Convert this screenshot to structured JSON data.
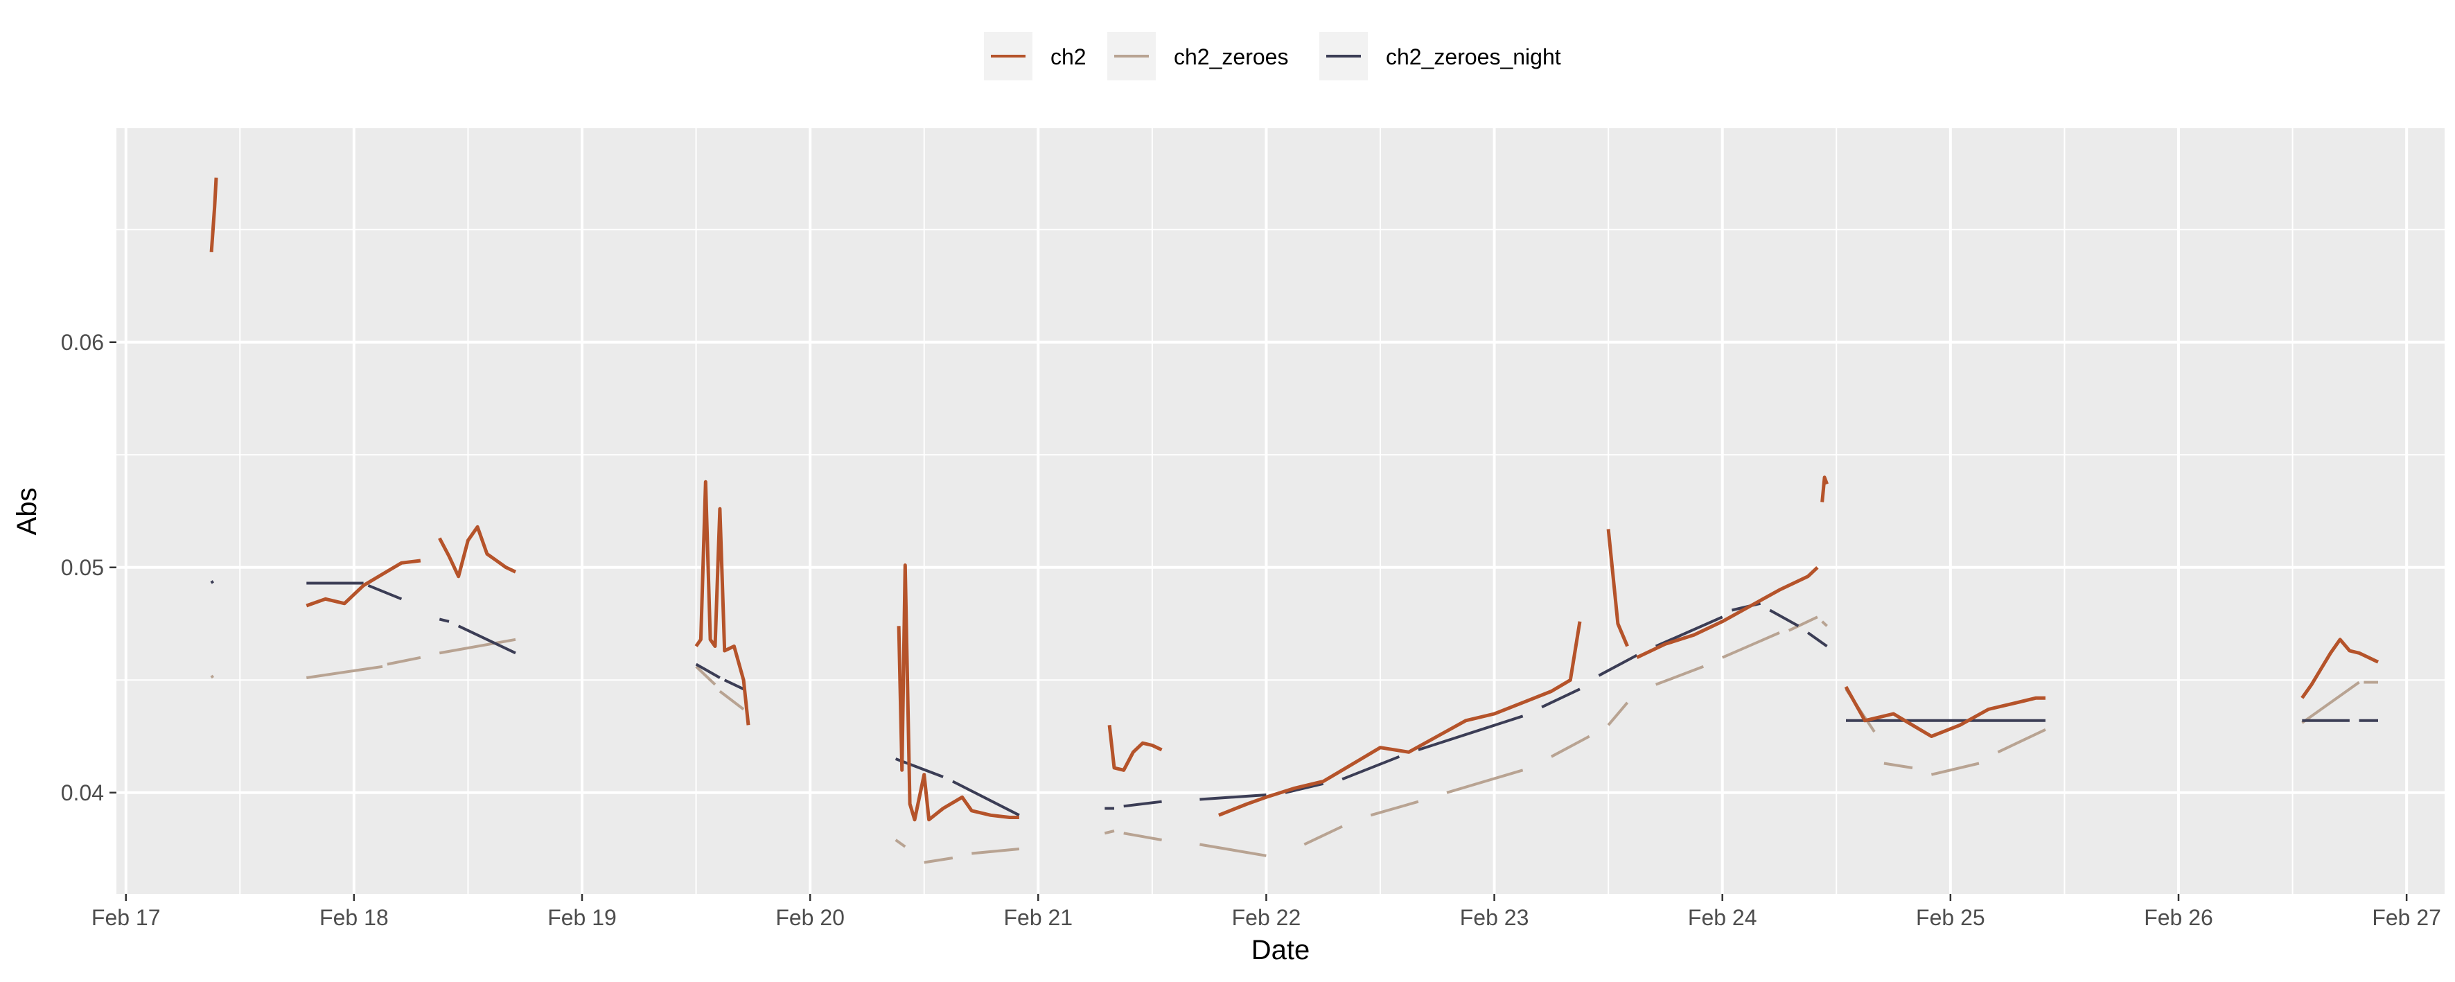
{
  "chart_data": {
    "type": "line",
    "title": "",
    "xlabel": "Date",
    "ylabel": "Abs",
    "x_ticks": [
      "Feb 17",
      "Feb 18",
      "Feb 19",
      "Feb 20",
      "Feb 21",
      "Feb 22",
      "Feb 23",
      "Feb 24",
      "Feb 25",
      "Feb 26",
      "Feb 27"
    ],
    "y_ticks": [
      "0.04",
      "0.05",
      "0.06"
    ],
    "xlim": [
      "Feb 16 23:00",
      "Feb 27 04:00"
    ],
    "ylim": [
      0.0355,
      0.0695
    ],
    "grid": true,
    "legend_position": "top",
    "series": [
      {
        "name": "ch2",
        "color": "#b5532a",
        "segments": [
          [
            [
              "Feb 17 09:00",
              0.064
            ],
            [
              "Feb 17 09:10",
              0.065
            ],
            [
              "Feb 17 09:20",
              0.066
            ],
            [
              "Feb 17 09:30",
              0.0673
            ]
          ],
          [
            [
              "Feb 17 19:00",
              0.0483
            ],
            [
              "Feb 17 21:00",
              0.0486
            ],
            [
              "Feb 17 23:00",
              0.0484
            ],
            [
              "Feb 18 01:00",
              0.0492
            ],
            [
              "Feb 18 03:00",
              0.0497
            ],
            [
              "Feb 18 05:00",
              0.0502
            ],
            [
              "Feb 18 07:00",
              0.0503
            ]
          ],
          [
            [
              "Feb 18 09:00",
              0.0513
            ],
            [
              "Feb 18 10:00",
              0.0505
            ],
            [
              "Feb 18 11:00",
              0.0496
            ],
            [
              "Feb 18 12:00",
              0.0512
            ],
            [
              "Feb 18 13:00",
              0.0518
            ],
            [
              "Feb 18 14:00",
              0.0506
            ],
            [
              "Feb 18 15:00",
              0.0503
            ],
            [
              "Feb 18 16:00",
              0.05
            ],
            [
              "Feb 18 17:00",
              0.0498
            ]
          ],
          [
            [
              "Feb 19 12:00",
              0.0465
            ],
            [
              "Feb 19 12:30",
              0.0468
            ],
            [
              "Feb 19 13:00",
              0.0538
            ],
            [
              "Feb 19 13:30",
              0.0468
            ],
            [
              "Feb 19 14:00",
              0.0465
            ],
            [
              "Feb 19 14:30",
              0.0526
            ],
            [
              "Feb 19 15:00",
              0.0463
            ],
            [
              "Feb 19 16:00",
              0.0465
            ],
            [
              "Feb 19 17:00",
              0.045
            ],
            [
              "Feb 19 17:30",
              0.043
            ]
          ],
          [
            [
              "Feb 20 09:20",
              0.0474
            ],
            [
              "Feb 20 09:40",
              0.041
            ],
            [
              "Feb 20 10:00",
              0.0501
            ],
            [
              "Feb 20 10:30",
              0.0395
            ],
            [
              "Feb 20 11:00",
              0.0388
            ],
            [
              "Feb 20 12:00",
              0.0408
            ],
            [
              "Feb 20 12:30",
              0.0388
            ],
            [
              "Feb 20 14:00",
              0.0393
            ],
            [
              "Feb 20 16:00",
              0.0398
            ],
            [
              "Feb 20 17:00",
              0.0392
            ],
            [
              "Feb 20 19:00",
              0.039
            ],
            [
              "Feb 20 21:00",
              0.0389
            ],
            [
              "Feb 20 22:00",
              0.0389
            ]
          ],
          [
            [
              "Feb 21 07:30",
              0.043
            ],
            [
              "Feb 21 08:00",
              0.0411
            ],
            [
              "Feb 21 09:00",
              0.041
            ],
            [
              "Feb 21 10:00",
              0.0418
            ],
            [
              "Feb 21 11:00",
              0.0422
            ],
            [
              "Feb 21 12:00",
              0.0421
            ],
            [
              "Feb 21 13:00",
              0.0419
            ]
          ],
          [
            [
              "Feb 21 19:00",
              0.039
            ],
            [
              "Feb 21 22:00",
              0.0395
            ],
            [
              "Feb 22 00:00",
              0.0398
            ],
            [
              "Feb 22 03:00",
              0.0402
            ],
            [
              "Feb 22 06:00",
              0.0405
            ],
            [
              "Feb 22 08:00",
              0.041
            ],
            [
              "Feb 22 10:00",
              0.0415
            ],
            [
              "Feb 22 12:00",
              0.042
            ],
            [
              "Feb 22 15:00",
              0.0418
            ],
            [
              "Feb 22 18:00",
              0.0425
            ],
            [
              "Feb 22 21:00",
              0.0432
            ],
            [
              "Feb 23 00:00",
              0.0435
            ],
            [
              "Feb 23 03:00",
              0.044
            ],
            [
              "Feb 23 06:00",
              0.0445
            ],
            [
              "Feb 23 08:00",
              0.045
            ],
            [
              "Feb 23 09:00",
              0.0476
            ]
          ],
          [
            [
              "Feb 23 12:00",
              0.0517
            ],
            [
              "Feb 23 13:00",
              0.0475
            ],
            [
              "Feb 23 14:00",
              0.0465
            ]
          ],
          [
            [
              "Feb 23 15:00",
              0.046
            ],
            [
              "Feb 23 18:00",
              0.0466
            ],
            [
              "Feb 23 21:00",
              0.047
            ],
            [
              "Feb 24 00:00",
              0.0476
            ],
            [
              "Feb 24 03:00",
              0.0483
            ],
            [
              "Feb 24 06:00",
              0.049
            ],
            [
              "Feb 24 09:00",
              0.0496
            ],
            [
              "Feb 24 10:00",
              0.05
            ]
          ],
          [
            [
              "Feb 24 10:30",
              0.0529
            ],
            [
              "Feb 24 10:45",
              0.054
            ],
            [
              "Feb 24 11:00",
              0.0537
            ]
          ],
          [
            [
              "Feb 24 13:00",
              0.0447
            ],
            [
              "Feb 24 15:00",
              0.0432
            ],
            [
              "Feb 24 18:00",
              0.0435
            ],
            [
              "Feb 24 20:00",
              0.043
            ],
            [
              "Feb 24 22:00",
              0.0425
            ],
            [
              "Feb 25 01:00",
              0.043
            ],
            [
              "Feb 25 04:00",
              0.0437
            ],
            [
              "Feb 25 07:00",
              0.044
            ],
            [
              "Feb 25 09:00",
              0.0442
            ],
            [
              "Feb 25 10:00",
              0.0442
            ]
          ],
          [
            [
              "Feb 26 13:00",
              0.0442
            ],
            [
              "Feb 26 14:00",
              0.0448
            ],
            [
              "Feb 26 15:00",
              0.0455
            ],
            [
              "Feb 26 16:00",
              0.0462
            ],
            [
              "Feb 26 17:00",
              0.0468
            ],
            [
              "Feb 26 18:00",
              0.0463
            ],
            [
              "Feb 26 19:00",
              0.0462
            ],
            [
              "Feb 26 20:00",
              0.046
            ],
            [
              "Feb 26 21:00",
              0.0458
            ]
          ]
        ]
      },
      {
        "name": "ch2_zeroes",
        "color": "#b8a392",
        "segments": [
          [
            [
              "Feb 17 09:00",
              0.0452
            ],
            [
              "Feb 17 09:10",
              0.0451
            ]
          ],
          [
            [
              "Feb 17 19:00",
              0.0451
            ],
            [
              "Feb 18 03:00",
              0.0456
            ]
          ],
          [
            [
              "Feb 18 03:30",
              0.0457
            ],
            [
              "Feb 18 07:00",
              0.046
            ]
          ],
          [
            [
              "Feb 18 09:00",
              0.0462
            ],
            [
              "Feb 18 17:00",
              0.0468
            ]
          ],
          [
            [
              "Feb 19 12:00",
              0.0456
            ],
            [
              "Feb 19 14:00",
              0.0448
            ]
          ],
          [
            [
              "Feb 19 14:30",
              0.0445
            ],
            [
              "Feb 19 17:00",
              0.0437
            ]
          ],
          [
            [
              "Feb 20 09:00",
              0.0379
            ],
            [
              "Feb 20 10:00",
              0.0376
            ]
          ],
          [
            [
              "Feb 20 12:00",
              0.0369
            ],
            [
              "Feb 20 15:00",
              0.0371
            ]
          ],
          [
            [
              "Feb 20 17:00",
              0.0373
            ],
            [
              "Feb 20 22:00",
              0.0375
            ]
          ],
          [
            [
              "Feb 21 07:00",
              0.0382
            ],
            [
              "Feb 21 08:00",
              0.0383
            ]
          ],
          [
            [
              "Feb 21 09:00",
              0.0382
            ],
            [
              "Feb 21 13:00",
              0.0379
            ]
          ],
          [
            [
              "Feb 21 17:00",
              0.0377
            ],
            [
              "Feb 22 00:00",
              0.0372
            ]
          ],
          [
            [
              "Feb 22 04:00",
              0.0377
            ],
            [
              "Feb 22 08:00",
              0.0385
            ]
          ],
          [
            [
              "Feb 22 11:00",
              0.039
            ],
            [
              "Feb 22 16:00",
              0.0396
            ]
          ],
          [
            [
              "Feb 22 19:00",
              0.04
            ],
            [
              "Feb 23 03:00",
              0.041
            ]
          ],
          [
            [
              "Feb 23 06:00",
              0.0416
            ],
            [
              "Feb 23 10:00",
              0.0425
            ]
          ],
          [
            [
              "Feb 23 12:00",
              0.043
            ],
            [
              "Feb 23 14:00",
              0.044
            ]
          ],
          [
            [
              "Feb 23 17:00",
              0.0448
            ],
            [
              "Feb 23 22:00",
              0.0456
            ]
          ],
          [
            [
              "Feb 24 00:00",
              0.046
            ],
            [
              "Feb 24 06:00",
              0.0471
            ]
          ],
          [
            [
              "Feb 24 07:00",
              0.0472
            ],
            [
              "Feb 24 10:00",
              0.0478
            ]
          ],
          [
            [
              "Feb 24 10:30",
              0.0476
            ],
            [
              "Feb 24 11:00",
              0.0474
            ]
          ],
          [
            [
              "Feb 24 13:00",
              0.0446
            ],
            [
              "Feb 24 16:00",
              0.0427
            ]
          ],
          [
            [
              "Feb 24 17:00",
              0.0413
            ],
            [
              "Feb 24 20:00",
              0.0411
            ]
          ],
          [
            [
              "Feb 24 22:00",
              0.0408
            ],
            [
              "Feb 25 03:00",
              0.0413
            ]
          ],
          [
            [
              "Feb 25 05:00",
              0.0418
            ],
            [
              "Feb 25 10:00",
              0.0428
            ]
          ],
          [
            [
              "Feb 26 13:00",
              0.0431
            ],
            [
              "Feb 26 19:00",
              0.0449
            ]
          ],
          [
            [
              "Feb 26 19:30",
              0.0449
            ],
            [
              "Feb 26 21:00",
              0.0449
            ]
          ]
        ]
      },
      {
        "name": "ch2_zeroes_night",
        "color": "#3b3d55",
        "segments": [
          [
            [
              "Feb 17 09:00",
              0.0494
            ],
            [
              "Feb 17 09:10",
              0.0493
            ]
          ],
          [
            [
              "Feb 17 19:00",
              0.0493
            ],
            [
              "Feb 18 01:00",
              0.0493
            ]
          ],
          [
            [
              "Feb 18 01:30",
              0.0492
            ],
            [
              "Feb 18 05:00",
              0.0486
            ]
          ],
          [
            [
              "Feb 18 09:00",
              0.0477
            ],
            [
              "Feb 18 10:00",
              0.0476
            ]
          ],
          [
            [
              "Feb 18 11:00",
              0.0474
            ],
            [
              "Feb 18 17:00",
              0.0462
            ]
          ],
          [
            [
              "Feb 19 12:00",
              0.0457
            ],
            [
              "Feb 19 14:30",
              0.0451
            ]
          ],
          [
            [
              "Feb 19 15:00",
              0.045
            ],
            [
              "Feb 19 17:00",
              0.0446
            ]
          ],
          [
            [
              "Feb 20 09:00",
              0.0415
            ],
            [
              "Feb 20 14:00",
              0.0407
            ]
          ],
          [
            [
              "Feb 20 15:00",
              0.0405
            ],
            [
              "Feb 20 22:00",
              0.039
            ]
          ],
          [
            [
              "Feb 21 07:00",
              0.0393
            ],
            [
              "Feb 21 08:00",
              0.0393
            ]
          ],
          [
            [
              "Feb 21 09:00",
              0.0394
            ],
            [
              "Feb 21 13:00",
              0.0396
            ]
          ],
          [
            [
              "Feb 21 17:00",
              0.0397
            ],
            [
              "Feb 22 00:00",
              0.0399
            ]
          ],
          [
            [
              "Feb 22 02:00",
              0.04
            ],
            [
              "Feb 22 06:00",
              0.0404
            ]
          ],
          [
            [
              "Feb 22 08:00",
              0.0406
            ],
            [
              "Feb 22 14:00",
              0.0416
            ]
          ],
          [
            [
              "Feb 22 16:00",
              0.0419
            ],
            [
              "Feb 23 03:00",
              0.0434
            ]
          ],
          [
            [
              "Feb 23 05:00",
              0.0438
            ],
            [
              "Feb 23 09:00",
              0.0446
            ]
          ],
          [
            [
              "Feb 23 11:00",
              0.0452
            ],
            [
              "Feb 23 15:00",
              0.0461
            ]
          ],
          [
            [
              "Feb 23 17:00",
              0.0465
            ],
            [
              "Feb 24 00:00",
              0.0478
            ]
          ],
          [
            [
              "Feb 24 01:00",
              0.0481
            ],
            [
              "Feb 24 04:00",
              0.0484
            ]
          ],
          [
            [
              "Feb 24 05:00",
              0.0481
            ],
            [
              "Feb 24 08:00",
              0.0474
            ]
          ],
          [
            [
              "Feb 24 09:00",
              0.0471
            ],
            [
              "Feb 24 11:00",
              0.0465
            ]
          ],
          [
            [
              "Feb 24 13:00",
              0.0432
            ],
            [
              "Feb 25 10:00",
              0.0432
            ]
          ],
          [
            [
              "Feb 26 13:00",
              0.0432
            ],
            [
              "Feb 26 18:00",
              0.0432
            ]
          ],
          [
            [
              "Feb 26 19:00",
              0.0432
            ],
            [
              "Feb 26 21:00",
              0.0432
            ]
          ]
        ]
      }
    ]
  }
}
